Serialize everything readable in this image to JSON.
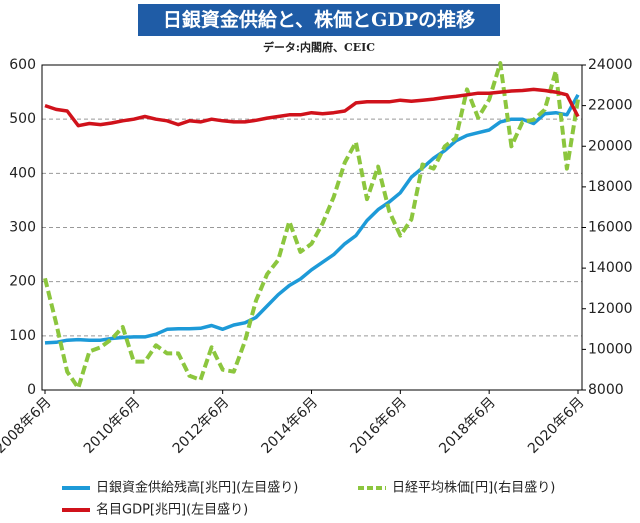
{
  "chart_data": {
    "type": "line",
    "title": "日銀資金供給と、株価とGDPの推移",
    "subtitle": "データ:内閣府、CEIC",
    "categories": [
      "2008年6月",
      null,
      null,
      null,
      null,
      null,
      null,
      null,
      "2010年6月",
      null,
      null,
      null,
      null,
      null,
      null,
      null,
      "2012年6月",
      null,
      null,
      null,
      null,
      null,
      null,
      null,
      "2014年6月",
      null,
      null,
      null,
      null,
      null,
      null,
      null,
      "2016年6月",
      null,
      null,
      null,
      null,
      null,
      null,
      null,
      "2018年6月",
      null,
      null,
      null,
      null,
      null,
      null,
      null,
      "2020年6月"
    ],
    "ylim": [
      0,
      600
    ],
    "yticks": [
      0,
      100,
      200,
      300,
      400,
      500,
      600
    ],
    "y2lim": [
      8000,
      24000
    ],
    "y2ticks": [
      8000,
      10000,
      12000,
      14000,
      16000,
      18000,
      20000,
      22000,
      24000
    ],
    "grid": true,
    "legend": "bottom",
    "series": [
      {
        "name": "日銀資金供給残高[兆円](左目盛り)",
        "color": "#1d9ad8",
        "dashed": false,
        "values": [
          87,
          88,
          92,
          93,
          92,
          92,
          95,
          97,
          98,
          98,
          103,
          112,
          113,
          113,
          114,
          119,
          112,
          120,
          124,
          134,
          155,
          176,
          193,
          205,
          222,
          236,
          250,
          270,
          285,
          313,
          333,
          347,
          364,
          393,
          410,
          428,
          442,
          460,
          470,
          475,
          480,
          495,
          500,
          500,
          492,
          510,
          512,
          508,
          545
        ]
      },
      {
        "name": "日経平均株価[円](右目盛り)",
        "color": "#8cc63e",
        "dashed": true,
        "axis": "y2",
        "values": [
          13500,
          11300,
          8900,
          8100,
          9900,
          10100,
          10500,
          11100,
          9400,
          9400,
          10200,
          9800,
          9800,
          8700,
          8500,
          10100,
          9000,
          8900,
          10400,
          12400,
          13700,
          14400,
          16300,
          14800,
          15200,
          16200,
          17500,
          19200,
          20200,
          17400,
          19000,
          16800,
          15600,
          16400,
          19100,
          18900,
          20000,
          20400,
          22800,
          21400,
          22300,
          24100,
          20000,
          21200,
          21300,
          21800,
          23700,
          18900,
          22300
        ]
      },
      {
        "name": "名目GDP[兆円](左目盛り)",
        "color": "#d0121b",
        "dashed": false,
        "values": [
          525,
          518,
          515,
          488,
          492,
          490,
          493,
          497,
          500,
          505,
          500,
          497,
          490,
          497,
          495,
          500,
          497,
          495,
          495,
          498,
          502,
          505,
          508,
          508,
          512,
          510,
          512,
          515,
          530,
          532,
          532,
          532,
          535,
          533,
          535,
          537,
          540,
          542,
          545,
          548,
          548,
          550,
          552,
          553,
          555,
          553,
          550,
          545,
          505
        ]
      }
    ]
  }
}
